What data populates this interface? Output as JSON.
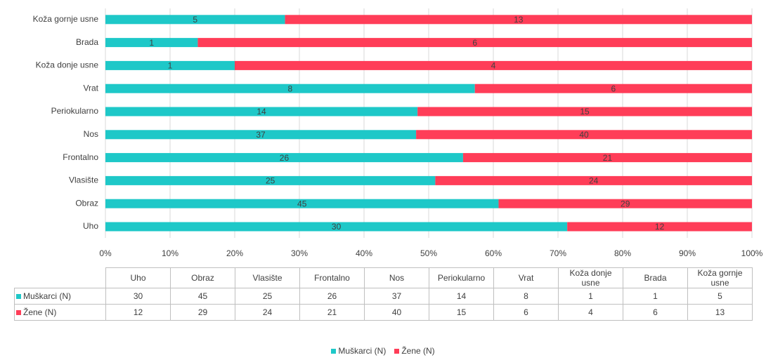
{
  "chart_data": {
    "type": "bar",
    "orientation": "horizontal",
    "stacked": "percent",
    "categories": [
      "Uho",
      "Obraz",
      "Vlasište",
      "Frontalno",
      "Nos",
      "Periokularno",
      "Vrat",
      "Koža donje usne",
      "Brada",
      "Koža gornje usne"
    ],
    "series": [
      {
        "name": "Muškarci (N)",
        "color": "#1ec8c8",
        "values": [
          30,
          45,
          25,
          26,
          37,
          14,
          8,
          1,
          1,
          5
        ]
      },
      {
        "name": "Žene (N)",
        "color": "#ff3d58",
        "values": [
          12,
          29,
          24,
          21,
          40,
          15,
          6,
          4,
          6,
          13
        ]
      }
    ],
    "xlim": [
      0,
      100
    ],
    "xticks": [
      {
        "value": 0,
        "label": "0%"
      },
      {
        "value": 10,
        "label": "10%"
      },
      {
        "value": 20,
        "label": "20%"
      },
      {
        "value": 30,
        "label": "30%"
      },
      {
        "value": 40,
        "label": "40%"
      },
      {
        "value": 50,
        "label": "50%"
      },
      {
        "value": 60,
        "label": "60%"
      },
      {
        "value": 70,
        "label": "70%"
      },
      {
        "value": 80,
        "label": "80%"
      },
      {
        "value": 90,
        "label": "90%"
      },
      {
        "value": 100,
        "label": "100%"
      }
    ],
    "grid": true,
    "legend": "bottom",
    "data_table": true
  }
}
